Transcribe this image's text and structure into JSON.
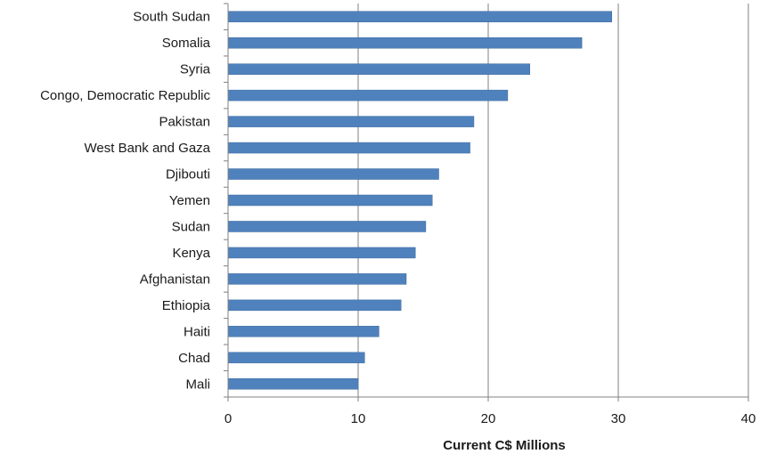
{
  "chart_data": {
    "type": "bar",
    "orientation": "horizontal",
    "categories": [
      "South Sudan",
      "Somalia",
      "Syria",
      "Congo, Democratic Republic",
      "Pakistan",
      "West Bank and Gaza",
      "Djibouti",
      "Yemen",
      "Sudan",
      "Kenya",
      "Afghanistan",
      "Ethiopia",
      "Haiti",
      "Chad",
      "Mali"
    ],
    "values": [
      29.5,
      27.2,
      23.2,
      21.5,
      18.9,
      18.6,
      16.2,
      15.7,
      15.2,
      14.4,
      13.7,
      13.3,
      11.6,
      10.5,
      10.0
    ],
    "xlabel": "Current C$ Millions",
    "ylabel": "",
    "xlim": [
      0,
      40
    ],
    "xticks": [
      0,
      10,
      20,
      30,
      40
    ],
    "xtick_labels": [
      "0",
      "10",
      "20",
      "30",
      "40"
    ],
    "grid": "vertical",
    "legend": "none",
    "colors": {
      "bar": "#4f81bd",
      "bar_edge": "#3c6a9e",
      "grid": "#808080",
      "axis": "#808080"
    }
  }
}
